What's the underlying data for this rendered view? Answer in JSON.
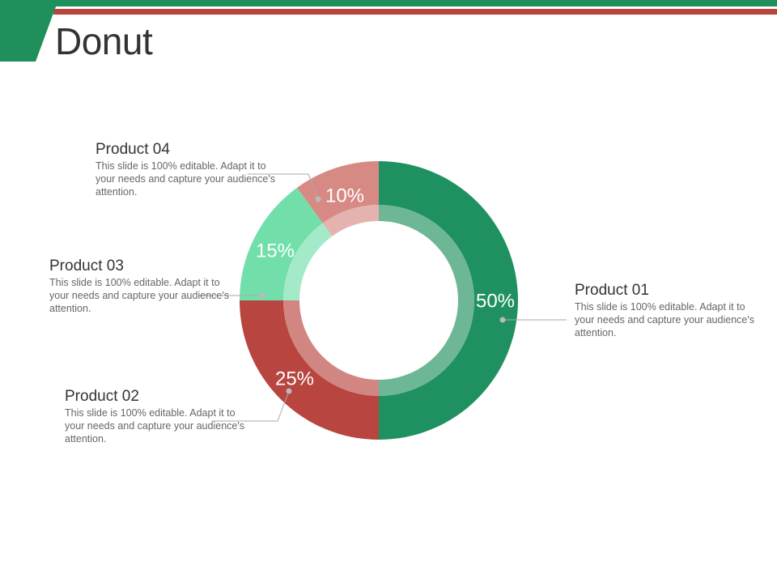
{
  "slide": {
    "title": "Donut"
  },
  "colors": {
    "header_green": "#1f8f5b",
    "header_red": "#b8443e",
    "leader_line": "#aaaaaa"
  },
  "chart_data": {
    "type": "pie",
    "style": "donut",
    "title": "",
    "slices": [
      {
        "name": "Product 01",
        "value": 50,
        "label": "50%",
        "color": "#1f9160",
        "description": "This slide is 100% editable. Adapt it to your needs and capture your audience's attention."
      },
      {
        "name": "Product 02",
        "value": 25,
        "label": "25%",
        "color": "#b8453f",
        "description": "This slide is 100% editable. Adapt it to your needs and capture your audience's attention."
      },
      {
        "name": "Product 03",
        "value": 15,
        "label": "15%",
        "color": "#72dfab",
        "description": "This slide is 100% editable. Adapt it to your needs and capture your audience's attention."
      },
      {
        "name": "Product 04",
        "value": 10,
        "label": "10%",
        "color": "#d78a84",
        "description": "This slide is 100% editable. Adapt it to your needs and capture your audience's attention."
      }
    ]
  }
}
